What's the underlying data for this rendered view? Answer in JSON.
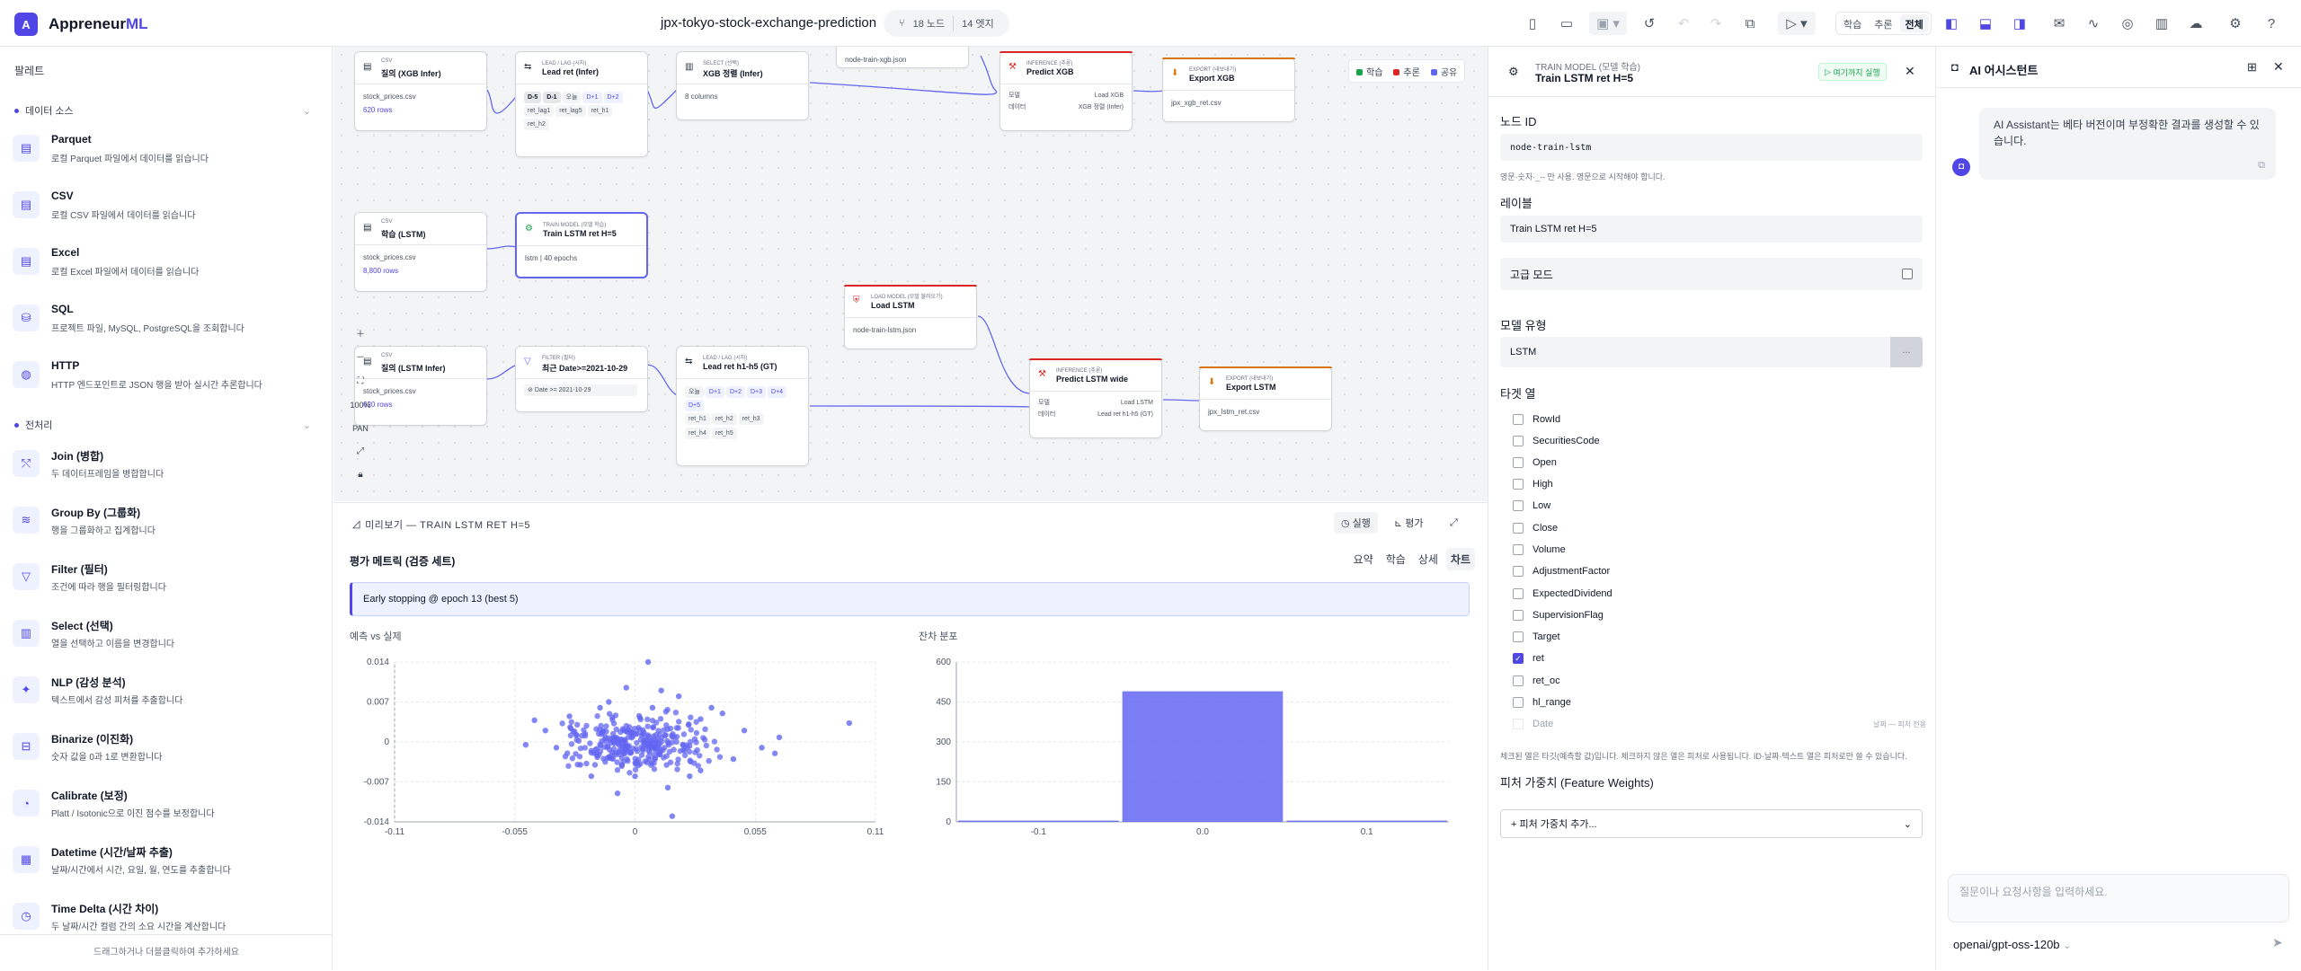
{
  "app": {
    "logo_glyph": "A",
    "name_prefix": "Appreneur",
    "name_suffix": "ML",
    "project_title": "jpx-tokyo-stock-exchange-prediction"
  },
  "stats": {
    "nodes": "18 노드",
    "edges": "14 엣지"
  },
  "modes": [
    "학습",
    "추론",
    "전체"
  ],
  "palette": {
    "title": "팔레트",
    "section_data": "데이터 소스",
    "section_pre": "전처리",
    "data_items": [
      {
        "name": "Parquet",
        "desc": "로컬 Parquet 파일에서 데이터를 읽습니다"
      },
      {
        "name": "CSV",
        "desc": "로컬 CSV 파일에서 데이터를 읽습니다"
      },
      {
        "name": "Excel",
        "desc": "로컬 Excel 파일에서 데이터를 읽습니다"
      },
      {
        "name": "SQL",
        "desc": "프로젝트 파일, MySQL, PostgreSQL을 조회합니다"
      },
      {
        "name": "HTTP",
        "desc": "HTTP 엔드포인트로 JSON 행을 받아 실시간 추론합니다"
      }
    ],
    "pre_items": [
      {
        "name": "Join (병합)",
        "desc": "두 데이터프레임을 병합합니다"
      },
      {
        "name": "Group By (그룹화)",
        "desc": "행을 그룹화하고 집계합니다"
      },
      {
        "name": "Filter (필터)",
        "desc": "조건에 따라 행을 필터링합니다"
      },
      {
        "name": "Select (선택)",
        "desc": "열을 선택하고 이름을 변경합니다"
      },
      {
        "name": "NLP (감성 분석)",
        "desc": "텍스트에서 감성 피처를 추출합니다"
      },
      {
        "name": "Binarize (이진화)",
        "desc": "숫자 값을 0과 1로 변환합니다"
      },
      {
        "name": "Calibrate (보정)",
        "desc": "Platt / Isotonic으로 이진 점수를 보정합니다"
      },
      {
        "name": "Datetime (시간/날짜 추출)",
        "desc": "날짜/시간에서 시간, 요일, 월, 연도를 추출합니다"
      },
      {
        "name": "Time Delta (시간 차이)",
        "desc": "두 날짜/시간 컬럼 간의 소요 시간을 계산합니다"
      }
    ],
    "footer": "드래그하거나 더블클릭하여 추가하세요"
  },
  "legend": [
    "학습",
    "추론",
    "공유"
  ],
  "legend_colors": [
    "#16a34a",
    "#dc2626",
    "#6366f1"
  ],
  "nodes": {
    "csv_xgb": {
      "cat": "CSV",
      "title": "질의 (XGB Infer)",
      "file": "stock_prices.csv",
      "meta": "620 rows"
    },
    "lead_ret": {
      "cat": "LEAD / LAG (시차)",
      "title": "Lead ret (Infer)",
      "chips1": [
        "D-5",
        "D-1",
        "오늘",
        "D+1",
        "D+2"
      ],
      "chips2": [
        "ret_lag1",
        "ret_lag5",
        "ret_h1",
        "ret_h2"
      ]
    },
    "select_xgb": {
      "cat": "SELECT (선택)",
      "title": "XGB 정렬 (Infer)",
      "body": "8 columns"
    },
    "load_xgb": {
      "body": "node-train-xgb.json"
    },
    "predict_xgb": {
      "cat": "INFERENCE (추론)",
      "title": "Predict XGB",
      "k1": "모델",
      "v1": "Load XGB",
      "k2": "데이터",
      "v2": "XGB 정렬 (Infer)"
    },
    "export_xgb": {
      "cat": "EXPORT (내보내기)",
      "title": "Export XGB",
      "body": "jpx_xgb_ret.csv"
    },
    "csv_lstm": {
      "cat": "CSV",
      "title": "학습 (LSTM)",
      "file": "stock_prices.csv",
      "meta": "8,800 rows"
    },
    "train_lstm": {
      "cat": "TRAIN MODEL (모델 학습)",
      "title": "Train LSTM ret H=5",
      "body": "lstm | 40 epochs"
    },
    "load_lstm": {
      "cat": "LOAD MODEL (모델 불러오기)",
      "title": "Load LSTM",
      "body": "node-train-lstm.json"
    },
    "csv_lstm_infer": {
      "cat": "CSV",
      "title": "질의 (LSTM Infer)",
      "file": "stock_prices.csv",
      "meta": "620 rows"
    },
    "filter": {
      "cat": "FILTER (필터)",
      "title": "최근 Date>=2021-10-29",
      "cond": "Date >= 2021-10-29"
    },
    "lead_gt": {
      "cat": "LEAD / LAG (시차)",
      "title": "Lead ret h1-h5 (GT)",
      "chips1": [
        "오늘",
        "D+1",
        "D+2",
        "D+3",
        "D+4",
        "D+5"
      ],
      "chips2": [
        "ret_h1",
        "ret_h2",
        "ret_h3",
        "ret_h4",
        "ret_h5"
      ]
    },
    "predict_lstm": {
      "cat": "INFERENCE (추론)",
      "title": "Predict LSTM wide",
      "k1": "모델",
      "v1": "Load LSTM",
      "k2": "데이터",
      "v2": "Lead ret h1-h5 (GT)"
    },
    "export_lstm": {
      "cat": "EXPORT (내보내기)",
      "title": "Export LSTM",
      "body": "jpx_lstm_ret.csv"
    }
  },
  "zoom": {
    "level": "100%",
    "pan": "PAN"
  },
  "preview": {
    "header": "미리보기 — TRAIN LSTM RET H=5",
    "run": "실행",
    "eval": "평가",
    "subtitle": "평가 메트릭 (검증 세트)",
    "tabs": [
      "요약",
      "학습",
      "상세",
      "차트"
    ],
    "note": "Early stopping @ epoch 13 (best 5)"
  },
  "chart_data": [
    {
      "type": "scatter",
      "title": "예측 vs 실제",
      "xlim": [
        -0.11,
        0.11
      ],
      "ylim": [
        -0.014,
        0.014
      ],
      "xticks": [
        "-0.11",
        "-0.055",
        "0",
        "0.055",
        "0.11"
      ],
      "yticks": [
        "0.014",
        "0.007",
        "0",
        "-0.007",
        "-0.014"
      ],
      "color": "#6366f1",
      "points": [
        [
          0.006,
          0.014
        ],
        [
          0.017,
          -0.013
        ],
        [
          -0.008,
          -0.009
        ],
        [
          0.098,
          0.0033
        ],
        [
          0.066,
          0.0008
        ],
        [
          0.064,
          -0.002
        ],
        [
          -0.046,
          0.0038
        ],
        [
          -0.041,
          0.002
        ],
        [
          0.02,
          0.008
        ],
        [
          -0.004,
          0.0095
        ],
        [
          0.012,
          0.009
        ],
        [
          0.03,
          0.004
        ],
        [
          -0.03,
          0.0045
        ],
        [
          0.045,
          -0.003
        ],
        [
          -0.02,
          -0.006
        ],
        [
          0.0,
          -0.006
        ],
        [
          0.04,
          0.005
        ],
        [
          -0.036,
          -0.001
        ],
        [
          0.05,
          0.002
        ],
        [
          0.015,
          -0.008
        ],
        [
          -0.012,
          0.007
        ],
        [
          0.025,
          -0.006
        ],
        [
          -0.025,
          -0.004
        ],
        [
          0.035,
          0.006
        ],
        [
          0.008,
          0.006
        ],
        [
          -0.016,
          0.006
        ],
        [
          0.058,
          -0.001
        ],
        [
          -0.05,
          -0.0005
        ],
        [
          0.03,
          -0.005
        ],
        [
          -0.006,
          -0.004
        ]
      ]
    },
    {
      "type": "bar",
      "title": "잔차 분포",
      "xlim": [
        -0.15,
        0.15
      ],
      "ylim": [
        0,
        600
      ],
      "xticks": [
        "-0.1",
        "0.0",
        "0.1"
      ],
      "yticks": [
        "600",
        "450",
        "300",
        "150",
        "0"
      ],
      "color": "#6366f1",
      "bins": [
        {
          "x0": -0.15,
          "x1": -0.05,
          "value": 5
        },
        {
          "x0": -0.05,
          "x1": 0.05,
          "value": 490
        },
        {
          "x0": 0.05,
          "x1": 0.15,
          "value": 5
        }
      ]
    }
  ],
  "inspector": {
    "category": "TRAIN MODEL (모델 학습)",
    "title": "Train LSTM ret H=5",
    "run_here": "여기까지 실행",
    "node_id_label": "노드 ID",
    "node_id": "node-train-lstm",
    "node_id_hint": "영문·숫자·_·- 만 사용. 영문으로 시작해야 합니다.",
    "label_label": "레이블",
    "label_value": "Train LSTM ret H=5",
    "advanced": "고급 모드",
    "model_type_label": "모델 유형",
    "model_type": "LSTM",
    "model_more": "...",
    "target_label": "타겟 열",
    "columns": [
      {
        "name": "RowId",
        "checked": false
      },
      {
        "name": "SecuritiesCode",
        "checked": false
      },
      {
        "name": "Open",
        "checked": false
      },
      {
        "name": "High",
        "checked": false
      },
      {
        "name": "Low",
        "checked": false
      },
      {
        "name": "Close",
        "checked": false
      },
      {
        "name": "Volume",
        "checked": false
      },
      {
        "name": "AdjustmentFactor",
        "checked": false
      },
      {
        "name": "ExpectedDividend",
        "checked": false
      },
      {
        "name": "SupervisionFlag",
        "checked": false
      },
      {
        "name": "Target",
        "checked": false
      },
      {
        "name": "ret",
        "checked": true
      },
      {
        "name": "ret_oc",
        "checked": false
      },
      {
        "name": "hl_range",
        "checked": false
      },
      {
        "name": "Date",
        "checked": false
      }
    ],
    "date_note": "날짜 — 피처 전용",
    "target_hint": "체크된 열은 타깃(예측할 값)입니다. 체크하지 않은 열은 피처로 사용됩니다. ID·날짜·텍스트 열은 피처로만 쓸 수 있습니다.",
    "weights_label": "피처 가중치 (Feature Weights)",
    "weights_add": "+ 피처 가중치 추가..."
  },
  "assistant": {
    "title": "AI 어시스턴트",
    "message": "AI Assistant는 베타 버전이며 부정확한 결과를 생성할 수 있습니다.",
    "placeholder": "질문이나 요청사항을 입력하세요.",
    "model": "openai/gpt-oss-120b"
  }
}
